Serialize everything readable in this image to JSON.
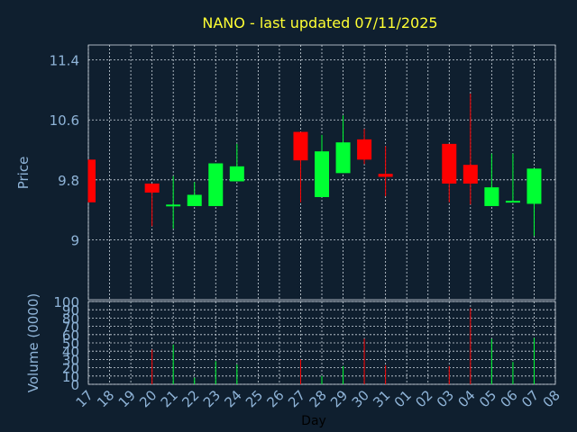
{
  "chart_data": {
    "type": "candlestick",
    "title": "NANO - last updated 07/11/2025",
    "xlabel": "Day",
    "ylabel": "Price",
    "volume_label": "Volume (0000)",
    "grid": true,
    "colors": {
      "background": "#0f1f2f",
      "title": "#ffff33",
      "axis_text": "#8fb4d8",
      "grid": "#cfd8e0",
      "up": "#00ff33",
      "down": "#ff0000"
    },
    "x_ticks": [
      "17",
      "18",
      "19",
      "20",
      "21",
      "22",
      "23",
      "24",
      "25",
      "26",
      "27",
      "28",
      "29",
      "30",
      "31",
      "01",
      "02",
      "03",
      "04",
      "05",
      "06",
      "07",
      "08"
    ],
    "price_axis": {
      "ylim": [
        8.2,
        11.6
      ],
      "ticks": [
        9,
        9.8,
        10.6,
        11.4
      ],
      "tick_labels": [
        "9",
        "9.8",
        "10.6",
        "11.4"
      ]
    },
    "volume_axis": {
      "ylim": [
        0,
        100
      ],
      "ticks": [
        0,
        10,
        20,
        30,
        40,
        50,
        60,
        70,
        80,
        90,
        100
      ],
      "tick_labels": [
        "0",
        "10",
        "20",
        "30",
        "40",
        "50",
        "60",
        "70",
        "80",
        "90",
        "100"
      ]
    },
    "candles": [
      {
        "day": "17",
        "open": 10.07,
        "close": 9.5,
        "high": 10.07,
        "low": 9.5,
        "volume": 0
      },
      {
        "day": "20",
        "open": 9.75,
        "close": 9.63,
        "high": 9.75,
        "low": 9.18,
        "volume": 42
      },
      {
        "day": "21",
        "open": 9.45,
        "close": 9.47,
        "high": 9.85,
        "low": 9.15,
        "volume": 48
      },
      {
        "day": "22",
        "open": 9.45,
        "close": 9.6,
        "high": 9.77,
        "low": 9.45,
        "volume": 8
      },
      {
        "day": "23",
        "open": 9.45,
        "close": 10.02,
        "high": 10.02,
        "low": 9.45,
        "volume": 28
      },
      {
        "day": "24",
        "open": 9.78,
        "close": 9.98,
        "high": 10.28,
        "low": 9.78,
        "volume": 24
      },
      {
        "day": "27",
        "open": 10.44,
        "close": 10.06,
        "high": 10.44,
        "low": 9.5,
        "volume": 30
      },
      {
        "day": "28",
        "open": 9.57,
        "close": 10.18,
        "high": 10.4,
        "low": 9.57,
        "volume": 10
      },
      {
        "day": "29",
        "open": 9.89,
        "close": 10.3,
        "high": 10.66,
        "low": 9.89,
        "volume": 22
      },
      {
        "day": "30",
        "open": 10.34,
        "close": 10.07,
        "high": 10.48,
        "low": 10.01,
        "volume": 55
      },
      {
        "day": "31",
        "open": 9.88,
        "close": 9.84,
        "high": 10.25,
        "low": 9.58,
        "volume": 23
      },
      {
        "day": "03",
        "open": 10.28,
        "close": 9.75,
        "high": 10.28,
        "low": 9.5,
        "volume": 22
      },
      {
        "day": "04",
        "open": 10.0,
        "close": 9.75,
        "high": 10.95,
        "low": 9.47,
        "volume": 92
      },
      {
        "day": "05",
        "open": 9.45,
        "close": 9.7,
        "high": 10.15,
        "low": 9.45,
        "volume": 55
      },
      {
        "day": "06",
        "open": 9.5,
        "close": 9.52,
        "high": 10.15,
        "low": 9.5,
        "volume": 27
      },
      {
        "day": "07",
        "open": 9.48,
        "close": 9.95,
        "high": 9.95,
        "low": 9.05,
        "volume": 56
      }
    ]
  }
}
